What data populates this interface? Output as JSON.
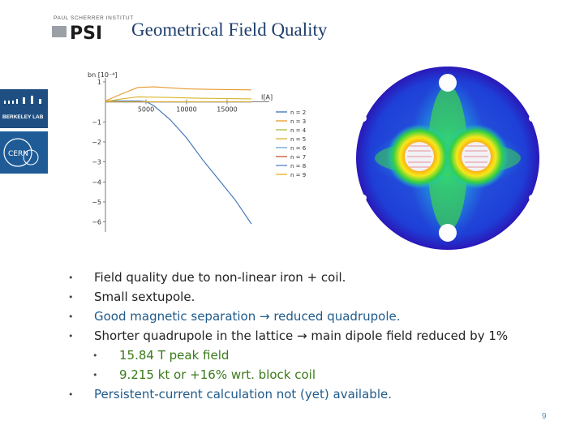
{
  "slide": {
    "title": "Geometrical Field Quality",
    "page_number": "9"
  },
  "logos": {
    "psi_top": "PAUL SCHERRER INSTITUT",
    "psi": "PSI",
    "berkeley": "BERKELEY LAB",
    "cern": "CERN"
  },
  "bullets": [
    {
      "text": "Field quality due to non-linear iron + coil.",
      "color": "#222222",
      "level": 0
    },
    {
      "text": "Small sextupole.",
      "color": "#222222",
      "level": 0
    },
    {
      "text": "Good magnetic separation → reduced quadrupole.",
      "color": "#1f5a8a",
      "level": 0
    },
    {
      "text": "Shorter quadrupole in the lattice → main dipole field reduced by 1%",
      "color": "#222222",
      "level": 0
    },
    {
      "text": "15.84 T peak field",
      "color": "#3a7a1a",
      "level": 1
    },
    {
      "text": "9.215 kt or +16% wrt. block coil",
      "color": "#3a7a1a",
      "level": 1
    },
    {
      "text": "Persistent-current calculation not (yet) available.",
      "color": "#1f5a8a",
      "level": 0
    }
  ],
  "chart_data": {
    "type": "line",
    "ylabel": "bn [10⁻⁴]",
    "xlabel": "I[A]",
    "xlim": [
      0,
      20000
    ],
    "ylim": [
      -6.5,
      1.2
    ],
    "x_ticks": [
      "5000",
      "10000",
      "15000"
    ],
    "y_ticks": [
      "1",
      "−1",
      "−2",
      "−3",
      "−4",
      "−5",
      "−6"
    ],
    "series": [
      {
        "name": "n = 2",
        "color": "#3b6fb6",
        "x": [
          0,
          2000,
          4000,
          5000,
          6000,
          8000,
          10000,
          12000,
          14000,
          16000,
          18000
        ],
        "y": [
          0.05,
          0.05,
          0.05,
          0.02,
          -0.2,
          -0.9,
          -1.8,
          -2.9,
          -3.9,
          -4.9,
          -6.1
        ]
      },
      {
        "name": "n = 3",
        "color": "#e89a2e",
        "x": [
          0,
          2000,
          4000,
          6000,
          8000,
          10000,
          14000,
          18000
        ],
        "y": [
          0.05,
          0.4,
          0.72,
          0.75,
          0.7,
          0.65,
          0.62,
          0.6
        ]
      },
      {
        "name": "n = 4",
        "color": "#a7b93a",
        "x": [
          0,
          18000
        ],
        "y": [
          0.0,
          0.0
        ]
      },
      {
        "name": "n = 5",
        "color": "#d8b52f",
        "x": [
          0,
          2000,
          4000,
          8000,
          12000,
          18000
        ],
        "y": [
          0.02,
          0.15,
          0.25,
          0.22,
          0.18,
          0.15
        ]
      },
      {
        "name": "n = 6",
        "color": "#6aa3d8",
        "x": [
          0,
          18000
        ],
        "y": [
          0.0,
          0.0
        ]
      },
      {
        "name": "n = 7",
        "color": "#c0552f",
        "x": [
          0,
          18000
        ],
        "y": [
          0.0,
          0.0
        ]
      },
      {
        "name": "n = 8",
        "color": "#5c7fc2",
        "x": [
          0,
          18000
        ],
        "y": [
          0.0,
          0.0
        ]
      },
      {
        "name": "n = 9",
        "color": "#e8b020",
        "x": [
          0,
          18000
        ],
        "y": [
          0.01,
          0.01
        ]
      }
    ],
    "legend_position": "right"
  }
}
